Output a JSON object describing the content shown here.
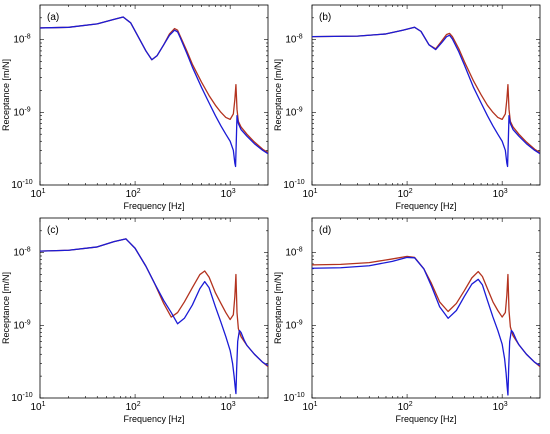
{
  "colors": {
    "series_red": "#b3331f",
    "series_blue": "#1b1bd6",
    "axis": "#000000"
  },
  "chart_data": [
    {
      "panel_label": "(a)",
      "type": "line",
      "xlabel": "Frequency [Hz]",
      "ylabel": "Receptance [m/N]",
      "xscale": "log",
      "yscale": "log",
      "xlim": [
        10,
        2500
      ],
      "ylim": [
        1e-10,
        3e-08
      ],
      "xticks": [
        {
          "value": 10,
          "base": "10",
          "exp": "1"
        },
        {
          "value": 100,
          "base": "10",
          "exp": "2"
        },
        {
          "value": 1000,
          "base": "10",
          "exp": "3"
        }
      ],
      "yticks": [
        {
          "value": 1e-10,
          "base": "10",
          "exp": "-10"
        },
        {
          "value": 1e-09,
          "base": "10",
          "exp": "-9"
        },
        {
          "value": 1e-08,
          "base": "10",
          "exp": "-8"
        }
      ],
      "grid": false,
      "legend": "none",
      "series": [
        {
          "color": "#b3331f",
          "x": [
            10,
            20,
            40,
            60,
            75,
            90,
            110,
            130,
            150,
            170,
            200,
            230,
            260,
            280,
            300,
            350,
            400,
            500,
            600,
            700,
            800,
            900,
            1000,
            1080,
            1120,
            1150,
            1180,
            1220,
            1300,
            1500,
            1800,
            2200,
            2500
          ],
          "y": [
            1.45e-08,
            1.48e-08,
            1.65e-08,
            1.9e-08,
            2.05e-08,
            1.7e-08,
            1.05e-08,
            7e-09,
            5.3e-09,
            6e-09,
            8.5e-09,
            1.2e-08,
            1.42e-08,
            1.35e-08,
            1.1e-08,
            7e-09,
            4.6e-09,
            2.6e-09,
            1.7e-09,
            1.25e-09,
            1e-09,
            8.5e-10,
            8e-10,
            9.5e-10,
            1.5e-09,
            2.4e-09,
            1.1e-09,
            7.5e-10,
            6.3e-10,
            5e-10,
            3.9e-10,
            3.1e-10,
            2.8e-10
          ]
        },
        {
          "color": "#1b1bd6",
          "x": [
            10,
            20,
            40,
            60,
            75,
            90,
            110,
            130,
            150,
            170,
            200,
            230,
            260,
            280,
            300,
            350,
            400,
            500,
            600,
            700,
            800,
            900,
            1000,
            1080,
            1120,
            1140,
            1160,
            1180,
            1220,
            1300,
            1500,
            1800,
            2200,
            2500
          ],
          "y": [
            1.45e-08,
            1.48e-08,
            1.65e-08,
            1.9e-08,
            2.05e-08,
            1.7e-08,
            1.05e-08,
            7e-09,
            5.3e-09,
            6e-09,
            8.5e-09,
            1.15e-08,
            1.35e-08,
            1.28e-08,
            1.05e-08,
            6.5e-09,
            4.2e-09,
            2.2e-09,
            1.35e-09,
            9e-10,
            6.5e-10,
            5e-10,
            4e-10,
            3e-10,
            2e-10,
            1.8e-10,
            4e-10,
            9e-10,
            7e-10,
            5.8e-10,
            4.7e-10,
            3.7e-10,
            3e-10,
            2.7e-10
          ]
        }
      ]
    },
    {
      "panel_label": "(b)",
      "type": "line",
      "xlabel": "Frequency [Hz]",
      "ylabel": "Receptance [m/N]",
      "xscale": "log",
      "yscale": "log",
      "xlim": [
        10,
        2500
      ],
      "ylim": [
        1e-10,
        3e-08
      ],
      "xticks": [
        {
          "value": 10,
          "base": "10",
          "exp": "1"
        },
        {
          "value": 100,
          "base": "10",
          "exp": "2"
        },
        {
          "value": 1000,
          "base": "10",
          "exp": "3"
        }
      ],
      "yticks": [
        {
          "value": 1e-10,
          "base": "10",
          "exp": "-10"
        },
        {
          "value": 1e-09,
          "base": "10",
          "exp": "-9"
        },
        {
          "value": 1e-08,
          "base": "10",
          "exp": "-8"
        }
      ],
      "grid": false,
      "legend": "none",
      "series": [
        {
          "color": "#b3331f",
          "x": [
            10,
            30,
            60,
            90,
            120,
            140,
            170,
            200,
            230,
            260,
            280,
            300,
            350,
            400,
            500,
            600,
            700,
            800,
            900,
            1000,
            1080,
            1120,
            1150,
            1180,
            1220,
            1300,
            1500,
            1800,
            2200,
            2500
          ],
          "y": [
            1.1e-08,
            1.12e-08,
            1.2e-08,
            1.35e-08,
            1.48e-08,
            1.3e-08,
            8.5e-09,
            7.5e-09,
            9.5e-09,
            1.18e-08,
            1.22e-08,
            1.1e-08,
            7.5e-09,
            5e-09,
            2.7e-09,
            1.75e-09,
            1.25e-09,
            1e-09,
            8.5e-10,
            8e-10,
            9.5e-10,
            1.5e-09,
            2.4e-09,
            1.1e-09,
            7.5e-10,
            6.3e-10,
            5e-10,
            3.9e-10,
            3.1e-10,
            2.8e-10
          ]
        },
        {
          "color": "#1b1bd6",
          "x": [
            10,
            30,
            60,
            90,
            120,
            140,
            170,
            200,
            230,
            260,
            280,
            300,
            350,
            400,
            500,
            600,
            700,
            800,
            900,
            1000,
            1080,
            1120,
            1140,
            1160,
            1180,
            1220,
            1300,
            1500,
            1800,
            2200,
            2500
          ],
          "y": [
            1.1e-08,
            1.12e-08,
            1.2e-08,
            1.35e-08,
            1.48e-08,
            1.3e-08,
            8.5e-09,
            7.3e-09,
            9e-09,
            1.1e-08,
            1.15e-08,
            1.02e-08,
            6.8e-09,
            4.5e-09,
            2.2e-09,
            1.35e-09,
            9e-10,
            6.5e-10,
            5e-10,
            4e-10,
            3e-10,
            2e-10,
            1.8e-10,
            4e-10,
            9e-10,
            7e-10,
            5.8e-10,
            4.7e-10,
            3.7e-10,
            3e-10,
            2.7e-10
          ]
        }
      ]
    },
    {
      "panel_label": "(c)",
      "type": "line",
      "xlabel": "Frequency [Hz]",
      "ylabel": "Receptance [m/N]",
      "xscale": "log",
      "yscale": "log",
      "xlim": [
        10,
        2500
      ],
      "ylim": [
        1e-10,
        3e-08
      ],
      "xticks": [
        {
          "value": 10,
          "base": "10",
          "exp": "1"
        },
        {
          "value": 100,
          "base": "10",
          "exp": "2"
        },
        {
          "value": 1000,
          "base": "10",
          "exp": "3"
        }
      ],
      "yticks": [
        {
          "value": 1e-10,
          "base": "10",
          "exp": "-10"
        },
        {
          "value": 1e-09,
          "base": "10",
          "exp": "-9"
        },
        {
          "value": 1e-08,
          "base": "10",
          "exp": "-8"
        }
      ],
      "grid": false,
      "legend": "none",
      "series": [
        {
          "color": "#b3331f",
          "x": [
            10,
            20,
            40,
            60,
            80,
            100,
            130,
            160,
            200,
            240,
            280,
            330,
            400,
            480,
            540,
            600,
            700,
            800,
            900,
            1000,
            1080,
            1120,
            1150,
            1180,
            1220,
            1300,
            1500,
            1800,
            2200,
            2500
          ],
          "y": [
            1.05e-08,
            1.08e-08,
            1.2e-08,
            1.42e-08,
            1.55e-08,
            1.15e-08,
            6.5e-09,
            3.8e-09,
            2e-09,
            1.3e-09,
            1.5e-09,
            2.1e-09,
            3.3e-09,
            5e-09,
            5.6e-09,
            4.6e-09,
            2.8e-09,
            2e-09,
            1.5e-09,
            1.2e-09,
            1.4e-09,
            2.5e-09,
            5e-09,
            1.5e-09,
            9e-10,
            7e-10,
            5.3e-10,
            4e-10,
            3.1e-10,
            2.7e-10
          ]
        },
        {
          "color": "#1b1bd6",
          "x": [
            10,
            20,
            40,
            60,
            80,
            100,
            130,
            160,
            200,
            240,
            280,
            330,
            400,
            480,
            540,
            600,
            700,
            800,
            900,
            1000,
            1060,
            1100,
            1130,
            1150,
            1170,
            1200,
            1250,
            1300,
            1400,
            1500,
            1800,
            2200,
            2500
          ],
          "y": [
            1.05e-08,
            1.08e-08,
            1.2e-08,
            1.42e-08,
            1.55e-08,
            1.15e-08,
            6.5e-09,
            3.8e-09,
            2.2e-09,
            1.5e-09,
            1.05e-09,
            1.25e-09,
            1.9e-09,
            3.2e-09,
            4e-09,
            3.3e-09,
            1.8e-09,
            1.1e-09,
            7e-10,
            4.5e-10,
            3e-10,
            2e-10,
            1.4e-10,
            1.15e-10,
            2.5e-10,
            6e-10,
            8.5e-10,
            8e-10,
            6.3e-10,
            5.3e-10,
            4e-10,
            3.1e-10,
            2.8e-10
          ]
        }
      ]
    },
    {
      "panel_label": "(d)",
      "type": "line",
      "xlabel": "Frequency [Hz]",
      "ylabel": "Receptance [m/N]",
      "xscale": "log",
      "yscale": "log",
      "xlim": [
        10,
        2500
      ],
      "ylim": [
        1e-10,
        3e-08
      ],
      "xticks": [
        {
          "value": 10,
          "base": "10",
          "exp": "1"
        },
        {
          "value": 100,
          "base": "10",
          "exp": "2"
        },
        {
          "value": 1000,
          "base": "10",
          "exp": "3"
        }
      ],
      "yticks": [
        {
          "value": 1e-10,
          "base": "10",
          "exp": "-10"
        },
        {
          "value": 1e-09,
          "base": "10",
          "exp": "-9"
        },
        {
          "value": 1e-08,
          "base": "10",
          "exp": "-8"
        }
      ],
      "grid": false,
      "legend": "none",
      "series": [
        {
          "color": "#b3331f",
          "x": [
            10,
            20,
            40,
            70,
            100,
            120,
            150,
            180,
            220,
            270,
            330,
            400,
            480,
            560,
            620,
            700,
            800,
            900,
            1000,
            1080,
            1120,
            1150,
            1180,
            1220,
            1300,
            1500,
            1800,
            2200,
            2500
          ],
          "y": [
            6.8e-09,
            6.9e-09,
            7.3e-09,
            8.2e-09,
            8.9e-09,
            8.6e-09,
            6e-09,
            3.8e-09,
            2.1e-09,
            1.55e-09,
            2e-09,
            3e-09,
            4.5e-09,
            5.5e-09,
            4.7e-09,
            3.2e-09,
            2.1e-09,
            1.6e-09,
            1.3e-09,
            1.5e-09,
            2.6e-09,
            5e-09,
            1.6e-09,
            9.5e-10,
            7.2e-10,
            5.4e-10,
            4e-10,
            3.1e-10,
            2.7e-10
          ]
        },
        {
          "color": "#1b1bd6",
          "x": [
            10,
            20,
            40,
            70,
            100,
            120,
            150,
            180,
            220,
            270,
            330,
            400,
            480,
            560,
            620,
            700,
            800,
            900,
            1000,
            1060,
            1100,
            1130,
            1150,
            1170,
            1200,
            1250,
            1300,
            1400,
            1500,
            1800,
            2200,
            2500
          ],
          "y": [
            6.1e-09,
            6.2e-09,
            6.6e-09,
            7.6e-09,
            8.6e-09,
            8.5e-09,
            6e-09,
            3.5e-09,
            1.8e-09,
            1.25e-09,
            1.6e-09,
            2.5e-09,
            3.7e-09,
            4.3e-09,
            3.6e-09,
            2.2e-09,
            1.3e-09,
            8.5e-10,
            5.5e-10,
            3.5e-10,
            2.2e-10,
            1.4e-10,
            1.1e-10,
            2.5e-10,
            6e-10,
            8.5e-10,
            8e-10,
            6.4e-10,
            5.4e-10,
            4e-10,
            3.1e-10,
            2.8e-10
          ]
        }
      ]
    }
  ]
}
